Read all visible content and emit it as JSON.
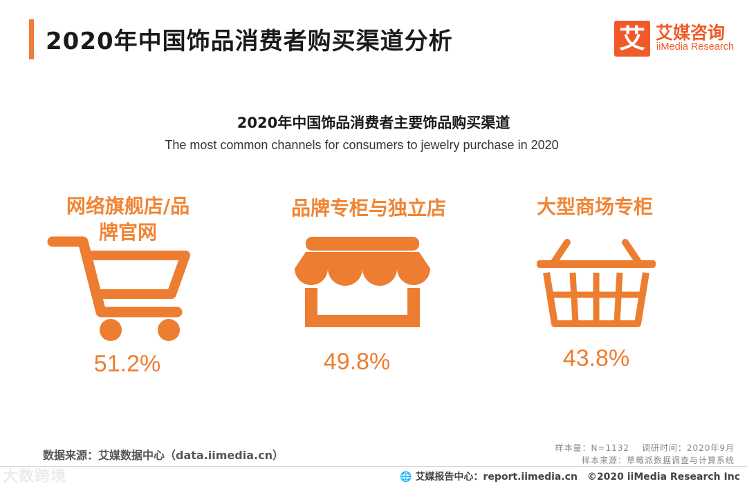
{
  "header": {
    "title": "2020年中国饰品消费者购买渠道分析",
    "accent_color": "#f07c3a"
  },
  "logo": {
    "mark": "艾",
    "name_cn": "艾媒咨询",
    "name_en": "iiMedia Research",
    "color": "#f05a28"
  },
  "chart_data": {
    "type": "icon-stat",
    "title": "2020年中国饰品消费者主要饰品购买渠道",
    "subtitle": "The most common channels for consumers to jewelry  purchase in 2020",
    "unit": "%",
    "color": "#ed7d31",
    "categories": [
      {
        "label": "网络旗舰店/品牌官网",
        "label_lines": [
          "网络旗舰店/品",
          "牌官网"
        ],
        "value": 51.2,
        "value_text": "51.2%",
        "icon": "shopping-cart-icon"
      },
      {
        "label": "品牌专柜与独立店",
        "label_lines": [
          "品牌专柜与独立店"
        ],
        "value": 49.8,
        "value_text": "49.8%",
        "icon": "storefront-icon"
      },
      {
        "label": "大型商场专柜",
        "label_lines": [
          "大型商场专柜"
        ],
        "value": 43.8,
        "value_text": "43.8%",
        "icon": "shopping-basket-icon"
      }
    ]
  },
  "source": {
    "text": "数据来源：艾媒数据中心（data.iimedia.cn）",
    "sample": "样本量：N=1132　 调研时间：2020年9月",
    "sample_source": "样本来源：草莓派数据调查与计算系统"
  },
  "footer": {
    "text": "艾媒报告中心：report.iimedia.cn　©2020  iiMedia Research  Inc"
  },
  "watermark": {
    "text": "大数跨境"
  }
}
